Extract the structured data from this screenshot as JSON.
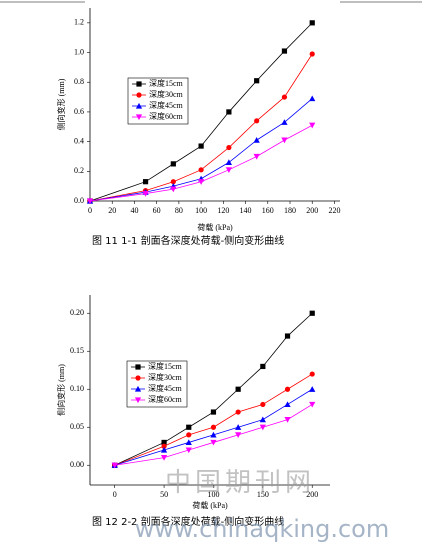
{
  "chart_data": [
    {
      "type": "line",
      "title": "图 11 1-1 剖面各深度处荷载-侧向变形曲线",
      "x_label": "荷载 (kPa)",
      "y_label": "侧向变形 (mm)",
      "x": [
        0,
        50,
        75,
        100,
        125,
        150,
        175,
        200
      ],
      "series": [
        {
          "name": "深度15cm",
          "color": "#000000",
          "marker": "square",
          "values": [
            0,
            0.13,
            0.25,
            0.37,
            0.6,
            0.81,
            1.01,
            1.2
          ]
        },
        {
          "name": "深度30cm",
          "color": "#ff0000",
          "marker": "circle",
          "values": [
            0,
            0.07,
            0.13,
            0.21,
            0.36,
            0.54,
            0.7,
            0.99
          ]
        },
        {
          "name": "深度45cm",
          "color": "#0000ff",
          "marker": "triangle-up",
          "values": [
            0,
            0.06,
            0.1,
            0.15,
            0.26,
            0.41,
            0.53,
            0.69
          ]
        },
        {
          "name": "深度60cm",
          "color": "#ff00ff",
          "marker": "triangle-down",
          "values": [
            0,
            0.05,
            0.08,
            0.13,
            0.21,
            0.3,
            0.41,
            0.51
          ]
        }
      ],
      "xlim": [
        0,
        225
      ],
      "xticks": [
        0,
        20,
        40,
        60,
        80,
        100,
        120,
        140,
        160,
        180,
        200,
        220
      ],
      "ylim": [
        0,
        1.3
      ],
      "yticks": [
        {
          "value": 0,
          "label": "0.0"
        },
        0.2,
        0.4,
        0.6,
        0.8,
        {
          "value": 1,
          "label": "1.0"
        },
        1.2
      ]
    },
    {
      "type": "line",
      "title": "图 12 2-2 剖面各深度处荷载-侧向变形曲线",
      "x_label": "荷载 (kPa)",
      "y_label": "侧向变形 (mm)",
      "x": [
        0,
        50,
        75,
        100,
        125,
        150,
        175,
        200
      ],
      "series": [
        {
          "name": "深度15cm",
          "color": "#000000",
          "marker": "square",
          "values": [
            0,
            0.03,
            0.05,
            0.07,
            0.1,
            0.13,
            0.17,
            0.2
          ]
        },
        {
          "name": "深度30cm",
          "color": "#ff0000",
          "marker": "circle",
          "values": [
            0,
            0.025,
            0.04,
            0.05,
            0.07,
            0.08,
            0.1,
            0.12
          ]
        },
        {
          "name": "深度45cm",
          "color": "#0000ff",
          "marker": "triangle-up",
          "values": [
            0,
            0.02,
            0.03,
            0.04,
            0.05,
            0.06,
            0.08,
            0.1
          ]
        },
        {
          "name": "深度60cm",
          "color": "#ff00ff",
          "marker": "triangle-down",
          "values": [
            0,
            0.01,
            0.02,
            0.03,
            0.04,
            0.05,
            0.06,
            0.08
          ]
        }
      ],
      "xlim": [
        -25,
        218
      ],
      "xticks": [
        0,
        50,
        100,
        150,
        200
      ],
      "ylim": [
        -0.026,
        0.224
      ],
      "yticks": [
        {
          "value": 0,
          "label": "0.00"
        },
        {
          "value": 0.05,
          "label": "0.05"
        },
        {
          "value": 0.1,
          "label": "0.10"
        },
        {
          "value": 0.15,
          "label": "0.15"
        },
        {
          "value": 0.2,
          "label": "0.20"
        }
      ]
    }
  ],
  "watermark": {
    "text": "中国期刊网",
    "url": "www.chinaqking.com"
  }
}
